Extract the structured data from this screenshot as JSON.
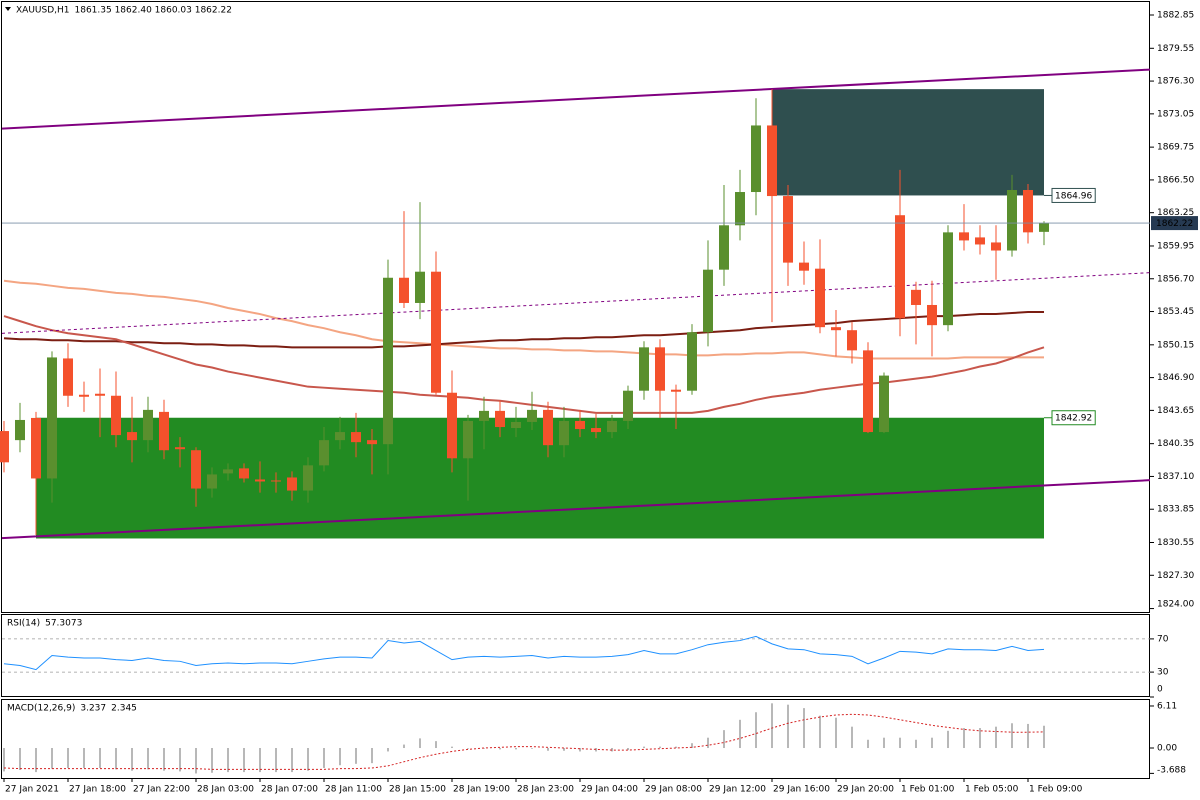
{
  "chart_data": [
    {
      "type": "candlestick",
      "title": "XAUUSD,H1",
      "subtitle": "1861.35 1862.40 1860.03 1862.22",
      "categories": [
        "27 Jan 2021",
        null,
        null,
        null,
        "27 Jan 18:00",
        null,
        null,
        null,
        "27 Jan 22:00",
        null,
        null,
        null,
        "28 Jan 03:00",
        null,
        null,
        null,
        "28 Jan 07:00",
        null,
        null,
        null,
        "28 Jan 11:00",
        null,
        null,
        null,
        "28 Jan 15:00",
        null,
        null,
        null,
        "28 Jan 19:00",
        null,
        null,
        null,
        "28 Jan 23:00",
        null,
        null,
        null,
        "29 Jan 04:00",
        null,
        null,
        null,
        "29 Jan 08:00",
        null,
        null,
        null,
        "29 Jan 12:00",
        null,
        null,
        null,
        "29 Jan 16:00",
        null,
        null,
        null,
        "29 Jan 20:00",
        null,
        null,
        null,
        "1 Feb 01:00",
        null,
        null,
        null,
        "1 Feb 05:00",
        null,
        null,
        null,
        "1 Feb 09:00",
        null
      ],
      "open": [
        1841.6,
        1840.7,
        1842.9,
        1836.9,
        1848.8,
        1845.2,
        1845.3,
        1845.1,
        1841.5,
        1840.7,
        1843.5,
        1840.0,
        1839.7,
        1835.9,
        1837.4,
        1837.9,
        1836.8,
        1836.7,
        1837.0,
        1835.7,
        1838.2,
        1840.7,
        1841.5,
        1840.7,
        1840.3,
        1856.8,
        1854.3,
        1857.4,
        1845.4,
        1838.9,
        1842.6,
        1843.6,
        1841.9,
        1842.5,
        1843.7,
        1840.2,
        1842.6,
        1841.9,
        1841.5,
        1842.6,
        1845.6,
        1849.9,
        1845.7,
        1845.6,
        1851.4,
        1857.6,
        1862.0,
        1865.3,
        1871.9,
        1864.9,
        1858.3,
        1857.7,
        1851.9,
        1851.6,
        1849.6,
        1841.5,
        1863.0,
        1855.6,
        1854.1,
        1852.1,
        1861.3,
        1860.8,
        1860.3,
        1859.5,
        1865.5,
        1861.35
      ],
      "high": [
        1842.6,
        1844.4,
        1843.5,
        1849.5,
        1850.3,
        1846.5,
        1847.8,
        1847.5,
        1845.0,
        1845.0,
        1844.7,
        1841.0,
        1840.0,
        1838.0,
        1838.4,
        1838.4,
        1838.6,
        1837.5,
        1837.6,
        1839.0,
        1842.0,
        1843.0,
        1843.4,
        1841.8,
        1858.6,
        1863.4,
        1864.3,
        1859.4,
        1847.6,
        1843.2,
        1845.0,
        1844.6,
        1844.0,
        1845.5,
        1844.5,
        1844.0,
        1843.7,
        1843.3,
        1843.2,
        1846.1,
        1850.5,
        1850.7,
        1846.2,
        1852.2,
        1860.5,
        1866.0,
        1867.5,
        1874.6,
        1875.5,
        1866.0,
        1860.4,
        1860.6,
        1853.6,
        1852.4,
        1850.4,
        1847.4,
        1867.5,
        1856.4,
        1856.5,
        1862.0,
        1864.1,
        1862.0,
        1862.0,
        1867.0,
        1866.1,
        1862.4
      ],
      "low": [
        1837.5,
        1839.5,
        1831.3,
        1834.5,
        1844.0,
        1843.5,
        1841.0,
        1840.0,
        1838.5,
        1839.5,
        1838.8,
        1838.0,
        1834.1,
        1835.0,
        1836.7,
        1836.5,
        1835.5,
        1835.5,
        1834.7,
        1834.5,
        1837.6,
        1839.8,
        1839.0,
        1837.3,
        1837.3,
        1853.8,
        1852.7,
        1845.2,
        1837.5,
        1834.7,
        1839.8,
        1841.0,
        1841.0,
        1841.7,
        1839.0,
        1839.0,
        1841.0,
        1840.9,
        1840.9,
        1841.8,
        1844.7,
        1842.9,
        1841.8,
        1845.2,
        1850.0,
        1856.0,
        1860.5,
        1863.0,
        1852.4,
        1856.0,
        1856.1,
        1851.3,
        1849.0,
        1848.3,
        1841.4,
        1841.4,
        1851.0,
        1850.2,
        1849.0,
        1851.5,
        1859.5,
        1859.1,
        1856.6,
        1858.9,
        1860.2,
        1860.03
      ],
      "close": [
        1838.5,
        1842.7,
        1836.9,
        1848.9,
        1845.1,
        1845.0,
        1845.1,
        1841.2,
        1840.7,
        1843.7,
        1839.7,
        1839.8,
        1835.9,
        1837.3,
        1837.8,
        1836.9,
        1836.6,
        1836.6,
        1835.7,
        1838.2,
        1840.7,
        1841.5,
        1840.5,
        1840.3,
        1856.8,
        1854.3,
        1857.4,
        1845.4,
        1838.9,
        1842.6,
        1843.6,
        1842.0,
        1842.5,
        1843.7,
        1840.2,
        1842.6,
        1841.8,
        1841.5,
        1842.6,
        1845.6,
        1849.9,
        1845.6,
        1845.5,
        1851.4,
        1857.6,
        1862.0,
        1865.3,
        1871.9,
        1864.9,
        1858.3,
        1857.5,
        1851.9,
        1851.6,
        1849.6,
        1841.5,
        1847.1,
        1852.8,
        1854.1,
        1852.1,
        1861.3,
        1860.5,
        1860.1,
        1859.5,
        1865.5,
        1861.3,
        1862.22
      ],
      "up_color": "#5a8f2e",
      "down_color": "#f4512c",
      "series": [
        {
          "color": "#f4a582",
          "values": [
            1856.5,
            1856.3,
            1856.2,
            1856.0,
            1855.8,
            1855.7,
            1855.5,
            1855.3,
            1855.2,
            1855.0,
            1854.9,
            1854.7,
            1854.5,
            1854.2,
            1853.8,
            1853.5,
            1853.2,
            1852.8,
            1852.5,
            1852.1,
            1851.8,
            1851.4,
            1851.1,
            1850.7,
            1850.5,
            1850.4,
            1850.3,
            1850.2,
            1850.1,
            1850.0,
            1849.9,
            1849.8,
            1849.8,
            1849.7,
            1849.7,
            1849.6,
            1849.6,
            1849.5,
            1849.5,
            1849.4,
            1849.3,
            1849.2,
            1849.2,
            1849.1,
            1849.1,
            1849.2,
            1849.2,
            1849.3,
            1849.3,
            1849.4,
            1849.4,
            1849.2,
            1849.0,
            1848.9,
            1848.8,
            1848.8,
            1848.8,
            1848.8,
            1848.8,
            1848.8,
            1848.9,
            1848.9,
            1848.9,
            1848.9,
            1848.9,
            1848.9
          ]
        },
        {
          "color": "#7b1e12",
          "values": [
            1850.8,
            1850.7,
            1850.7,
            1850.6,
            1850.6,
            1850.5,
            1850.5,
            1850.5,
            1850.4,
            1850.4,
            1850.3,
            1850.3,
            1850.2,
            1850.2,
            1850.1,
            1850.1,
            1850.0,
            1850.0,
            1849.9,
            1849.9,
            1849.9,
            1849.9,
            1849.9,
            1849.9,
            1850.0,
            1850.0,
            1850.1,
            1850.2,
            1850.3,
            1850.4,
            1850.5,
            1850.6,
            1850.6,
            1850.7,
            1850.7,
            1850.8,
            1850.8,
            1850.9,
            1850.9,
            1851.0,
            1851.1,
            1851.1,
            1851.2,
            1851.3,
            1851.4,
            1851.5,
            1851.6,
            1851.8,
            1851.9,
            1852.0,
            1852.1,
            1852.2,
            1852.3,
            1852.5,
            1852.6,
            1852.7,
            1852.8,
            1852.9,
            1853.0,
            1853.0,
            1853.1,
            1853.2,
            1853.2,
            1853.3,
            1853.4,
            1853.4
          ]
        },
        {
          "color": "#c8574c",
          "values": [
            1853.0,
            1852.5,
            1852.0,
            1851.6,
            1851.3,
            1851.1,
            1850.9,
            1850.7,
            1850.2,
            1849.7,
            1849.2,
            1848.7,
            1848.2,
            1847.9,
            1847.5,
            1847.2,
            1846.9,
            1846.6,
            1846.3,
            1846.0,
            1845.9,
            1845.8,
            1845.7,
            1845.6,
            1845.5,
            1845.4,
            1845.2,
            1845.1,
            1845.0,
            1844.9,
            1844.7,
            1844.6,
            1844.4,
            1844.2,
            1844.0,
            1843.8,
            1843.6,
            1843.4,
            1843.4,
            1843.4,
            1843.4,
            1843.4,
            1843.4,
            1843.4,
            1843.6,
            1844.0,
            1844.3,
            1844.7,
            1845.0,
            1845.2,
            1845.4,
            1845.7,
            1845.9,
            1846.1,
            1846.3,
            1846.4,
            1846.6,
            1846.8,
            1847.0,
            1847.3,
            1847.6,
            1848.0,
            1848.3,
            1848.8,
            1849.4,
            1849.9
          ]
        }
      ],
      "rectangles": [
        {
          "from": 48,
          "to": 65,
          "top": 1875.5,
          "bottom": 1864.96,
          "color": "#2f4f4f",
          "label_edge": "bottom"
        },
        {
          "from": 2,
          "to": 65,
          "top": 1842.92,
          "bottom": 1830.95,
          "color": "#228b22",
          "label_edge": "top"
        }
      ],
      "trendlines": [
        {
          "x": [
            0,
            65
          ],
          "y": [
            1871.6,
            1876.9
          ],
          "color": "#800080",
          "dashed": false
        },
        {
          "x": [
            0,
            65
          ],
          "y": [
            1831.0,
            1836.2
          ],
          "color": "#800080",
          "dashed": false
        },
        {
          "x": [
            0,
            65
          ],
          "y": [
            1851.3,
            1856.75
          ],
          "color": "#800080",
          "dashed": true
        }
      ],
      "last_price_line": true,
      "ylim": [
        1823.66,
        1884.14
      ],
      "yticks": [
        1882.85,
        1879.55,
        {
          "value": 1876.3,
          "label": "1876.30"
        },
        1873.05,
        1869.75,
        {
          "value": 1866.5,
          "label": "1866.50"
        },
        1863.25,
        1859.95,
        {
          "value": 1856.7,
          "label": "1856.70"
        },
        1853.45,
        1850.15,
        {
          "value": 1846.9,
          "label": "1846.90"
        },
        1843.65,
        1840.35,
        {
          "value": 1837.1,
          "label": "1837.10"
        },
        1833.85,
        1830.55,
        {
          "value": 1827.3,
          "label": "1827.30"
        },
        {
          "value": 1824,
          "label": "1824.00"
        }
      ]
    },
    {
      "type": "line",
      "title": "RSI(14)",
      "series": [
        {
          "color": "#1e90ff",
          "values": [
            40,
            38,
            33,
            50,
            48,
            47,
            47,
            45,
            44,
            47,
            44,
            43,
            38,
            40,
            41,
            40,
            41,
            41,
            40,
            43,
            46,
            48,
            48,
            47,
            68,
            65,
            67,
            56,
            45,
            48,
            49,
            48,
            49,
            50,
            47,
            49,
            48,
            48,
            49,
            51,
            56,
            52,
            52,
            57,
            63,
            66,
            68,
            73,
            64,
            58,
            57,
            52,
            51,
            49,
            40,
            47,
            55,
            54,
            52,
            58,
            57,
            57,
            56,
            61,
            56,
            57.3073
          ]
        }
      ],
      "ylim": [
        0,
        100
      ],
      "yticks": [
        70,
        30,
        0
      ],
      "grid": true
    },
    {
      "type": "macd",
      "title": "MACD(12,26,9)",
      "series": [
        {
          "kind": "bar",
          "color": "#b8b8b8",
          "values": [
            -3.4,
            -3.2,
            -3.5,
            -3.0,
            -2.9,
            -2.9,
            -2.9,
            -3.1,
            -3.3,
            -3.1,
            -3.3,
            -3.4,
            -3.7,
            -3.6,
            -3.5,
            -3.5,
            -3.5,
            -3.5,
            -3.5,
            -3.3,
            -2.9,
            -2.5,
            -2.3,
            -2.2,
            -0.5,
            0.5,
            1.4,
            1.0,
            0.2,
            -0.1,
            -0.1,
            -0.2,
            -0.2,
            -0.1,
            -0.4,
            -0.4,
            -0.5,
            -0.5,
            -0.5,
            -0.3,
            0.2,
            0.2,
            0.2,
            0.7,
            1.5,
            2.6,
            4.1,
            5.2,
            6.5,
            6.3,
            5.8,
            4.7,
            4.4,
            3.1,
            1.2,
            1.5,
            1.5,
            1.2,
            1.5,
            2.5,
            2.9,
            2.9,
            3.1,
            3.6,
            3.5,
            3.237
          ]
        },
        {
          "kind": "line",
          "color": "#d42020",
          "dashed": true,
          "values": [
            -2.9,
            -3.0,
            -3.0,
            -3.0,
            -3.0,
            -3.0,
            -3.0,
            -3.0,
            -3.0,
            -3.0,
            -3.0,
            -3.0,
            -3.0,
            -3.1,
            -3.1,
            -3.1,
            -3.1,
            -3.1,
            -3.1,
            -3.1,
            -3.1,
            -3.0,
            -3.0,
            -2.9,
            -2.6,
            -2.0,
            -1.4,
            -0.9,
            -0.5,
            -0.2,
            0.0,
            0.1,
            0.2,
            0.2,
            0.1,
            0.0,
            -0.1,
            -0.2,
            -0.3,
            -0.3,
            -0.2,
            -0.1,
            0.0,
            0.1,
            0.4,
            0.8,
            1.4,
            2.1,
            2.9,
            3.6,
            4.1,
            4.5,
            4.8,
            4.9,
            4.8,
            4.5,
            4.1,
            3.7,
            3.3,
            3.0,
            2.7,
            2.5,
            2.4,
            2.3,
            2.3,
            2.345
          ]
        }
      ],
      "ylim": [
        -4.36,
        6.98
      ],
      "yticks": [
        6.11,
        {
          "value": 0,
          "label": "0.00"
        },
        -3.688
      ]
    }
  ]
}
